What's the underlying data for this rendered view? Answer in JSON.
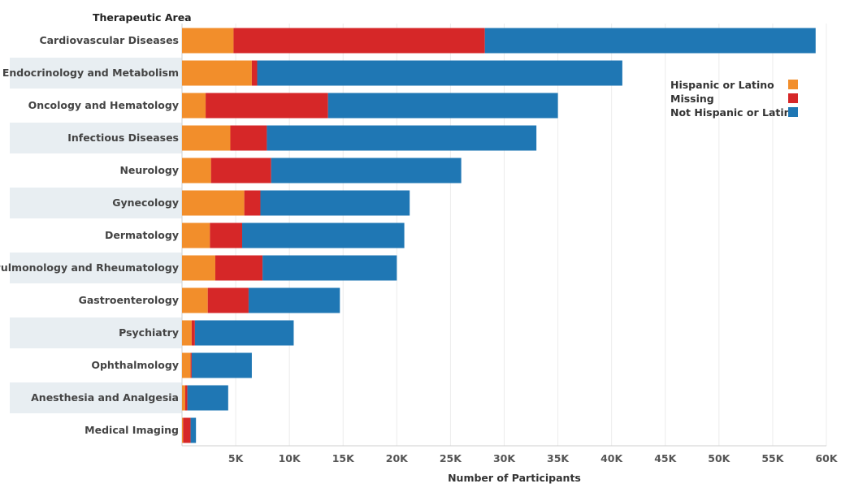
{
  "chart_data": {
    "type": "bar",
    "orientation": "horizontal",
    "stacked": true,
    "row_header": "Therapeutic Area",
    "xlabel": "Number of Participants",
    "xlim": [
      0,
      60000
    ],
    "xticks": [
      5000,
      10000,
      15000,
      20000,
      25000,
      30000,
      35000,
      40000,
      45000,
      50000,
      55000,
      60000
    ],
    "xtick_labels": [
      "5K",
      "10K",
      "15K",
      "20K",
      "25K",
      "30K",
      "35K",
      "40K",
      "45K",
      "50K",
      "55K",
      "60K"
    ],
    "grid": true,
    "legend_position": "top-right",
    "categories": [
      "Cardiovascular Diseases",
      "Endocrinology and Metabolism",
      "Oncology and Hematology",
      "Infectious Diseases",
      "Neurology",
      "Gynecology",
      "Dermatology",
      "Pulmonology and Rheumatology",
      "Gastroenterology",
      "Psychiatry",
      "Ophthalmology",
      "Anesthesia and Analgesia",
      "Medical Imaging"
    ],
    "series": [
      {
        "name": "Hispanic or Latino",
        "color": "#f28e2b",
        "values": [
          4800,
          6500,
          2200,
          4500,
          2700,
          5800,
          2600,
          3100,
          2400,
          900,
          800,
          300,
          100
        ]
      },
      {
        "name": "Missing",
        "color": "#d62728",
        "values": [
          23400,
          500,
          11400,
          3400,
          5600,
          1500,
          3000,
          4400,
          3800,
          300,
          100,
          200,
          700
        ]
      },
      {
        "name": "Not Hispanic or Latino",
        "color": "#1f77b4",
        "values": [
          30800,
          34000,
          21400,
          25100,
          17700,
          13900,
          15100,
          12500,
          8500,
          9200,
          5600,
          3800,
          500
        ]
      }
    ]
  }
}
